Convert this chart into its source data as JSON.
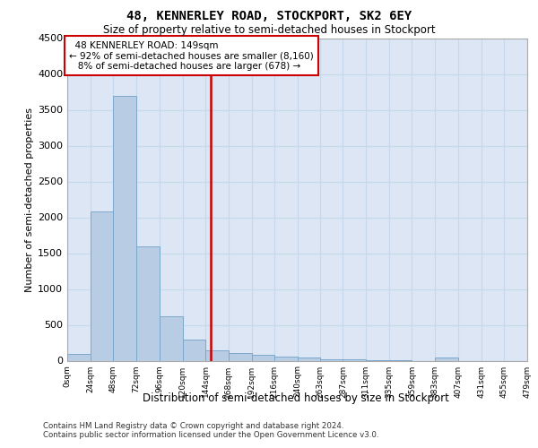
{
  "title_line1": "48, KENNERLEY ROAD, STOCKPORT, SK2 6EY",
  "title_line2": "Size of property relative to semi-detached houses in Stockport",
  "xlabel": "Distribution of semi-detached houses by size in Stockport",
  "ylabel": "Number of semi-detached properties",
  "property_label": "48 KENNERLEY ROAD: 149sqm",
  "pct_smaller": 92,
  "count_smaller": 8160,
  "pct_larger": 8,
  "count_larger": 678,
  "bin_edges": [
    0,
    24,
    48,
    72,
    96,
    120,
    144,
    168,
    192,
    216,
    240,
    263,
    287,
    311,
    335,
    359,
    383,
    407,
    431,
    455,
    479
  ],
  "bin_counts": [
    100,
    2080,
    3700,
    1600,
    620,
    290,
    150,
    110,
    80,
    55,
    45,
    20,
    15,
    8,
    5,
    0,
    40,
    0,
    0,
    0
  ],
  "bar_color": "#b8cce4",
  "bar_edge_color": "#7aa8cc",
  "vline_color": "#cc0000",
  "vline_x": 149,
  "grid_color": "#c8d8ec",
  "background_color": "#dce6f5",
  "ylim": [
    0,
    4500
  ],
  "yticks": [
    0,
    500,
    1000,
    1500,
    2000,
    2500,
    3000,
    3500,
    4000,
    4500
  ],
  "footer_line1": "Contains HM Land Registry data © Crown copyright and database right 2024.",
  "footer_line2": "Contains public sector information licensed under the Open Government Licence v3.0."
}
